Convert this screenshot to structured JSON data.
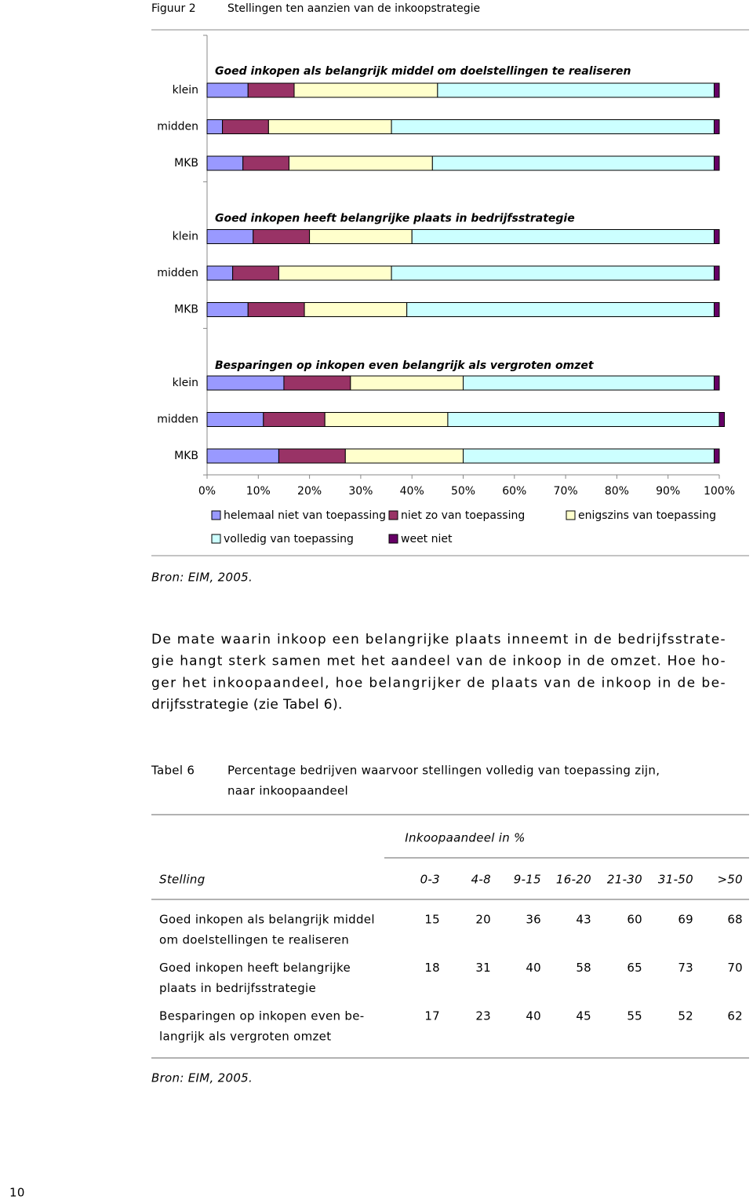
{
  "header": {
    "label": "Figuur 2",
    "title": "Stellingen ten aanzien van de inkoopstrategie"
  },
  "chart_data": {
    "type": "stacked-barh",
    "group_titles": [
      "Goed inkopen als belangrijk middel om doelstellingen te realiseren",
      "Goed inkopen heeft belangrijke plaats in bedrijfsstrategie",
      "Besparingen op inkopen even belangrijk als vergroten omzet"
    ],
    "categories": [
      "klein",
      "midden",
      "MKB",
      "klein",
      "midden",
      "MKB",
      "klein",
      "midden",
      "MKB"
    ],
    "series": [
      {
        "name": "helemaal niet van toepassing",
        "color": "#9999ff",
        "values": [
          8,
          3,
          7,
          9,
          5,
          8,
          15,
          11,
          14
        ]
      },
      {
        "name": "niet zo van toepassing",
        "color": "#993366",
        "values": [
          9,
          9,
          9,
          11,
          9,
          11,
          13,
          12,
          13
        ]
      },
      {
        "name": "enigszins van toepassing",
        "color": "#ffffcc",
        "values": [
          28,
          24,
          28,
          20,
          22,
          20,
          22,
          24,
          23
        ]
      },
      {
        "name": "volledig van toepassing",
        "color": "#ccffff",
        "values": [
          54,
          63,
          55,
          59,
          63,
          60,
          49,
          53,
          49
        ]
      },
      {
        "name": "weet niet",
        "color": "#660066",
        "values": [
          1,
          1,
          1,
          1,
          1,
          1,
          1,
          1,
          1
        ]
      }
    ],
    "xlim": [
      0,
      100
    ],
    "xticks": [
      {
        "value": 0,
        "label": "0%"
      },
      {
        "value": 10,
        "label": "10%"
      },
      {
        "value": 20,
        "label": "20%"
      },
      {
        "value": 30,
        "label": "30%"
      },
      {
        "value": 40,
        "label": "40%"
      },
      {
        "value": 50,
        "label": "50%"
      },
      {
        "value": 60,
        "label": "60%"
      },
      {
        "value": 70,
        "label": "70%"
      },
      {
        "value": 80,
        "label": "80%"
      },
      {
        "value": 90,
        "label": "90%"
      },
      {
        "value": 100,
        "label": "100%"
      }
    ]
  },
  "source1": "Bron: EIM, 2005.",
  "paragraph": [
    "De mate waarin inkoop een belangrijke plaats inneemt in de bedrijfsstrate-",
    "gie hangt sterk samen met het aandeel van de inkoop in de omzet. Hoe ho-",
    "ger het inkoopaandeel, hoe belangrijker de plaats van de inkoop in de be-",
    "drijfsstrategie (zie Tabel 6)."
  ],
  "table": {
    "label": "Tabel 6",
    "caption": [
      "Percentage bedrijven waarvoor stellingen volledig van toepassing zijn,",
      "naar inkoopaandeel"
    ],
    "group_header": "Inkoopaandeel in %",
    "columns": [
      "Stelling",
      "0-3",
      "4-8",
      "9-15",
      "16-20",
      "21-30",
      "31-50",
      ">50"
    ],
    "rows": [
      {
        "label": [
          "Goed inkopen als belangrijk middel",
          "om doelstellingen te realiseren"
        ],
        "values": [
          15,
          20,
          36,
          43,
          60,
          69,
          68
        ]
      },
      {
        "label": [
          "Goed inkopen heeft belangrijke",
          "plaats in bedrijfsstrategie"
        ],
        "values": [
          18,
          31,
          40,
          58,
          65,
          73,
          70
        ]
      },
      {
        "label": [
          "Besparingen op inkopen even be-",
          "langrijk als vergroten omzet"
        ],
        "values": [
          17,
          23,
          40,
          45,
          55,
          52,
          62
        ]
      }
    ]
  },
  "source2": "Bron: EIM, 2005.",
  "page_number": "10"
}
